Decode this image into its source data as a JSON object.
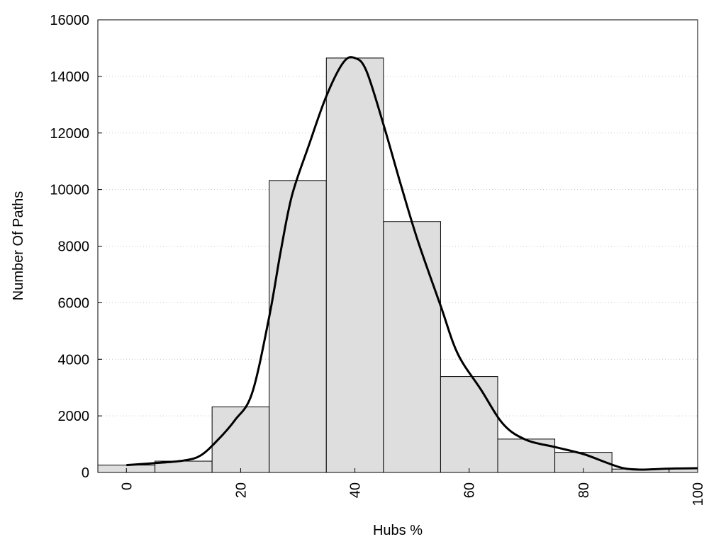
{
  "chart_data": {
    "type": "bar",
    "title": "",
    "xlabel": "Hubs %",
    "ylabel": "Number Of Paths",
    "xlim": [
      -5,
      100
    ],
    "ylim": [
      0,
      16000
    ],
    "xticks": [
      0,
      20,
      40,
      60,
      80,
      100
    ],
    "yticks": [
      0,
      2000,
      4000,
      6000,
      8000,
      10000,
      12000,
      14000,
      16000
    ],
    "grid": "horizontal dotted",
    "legend": "none",
    "bin_width": 10,
    "bins": [
      {
        "center": 0,
        "value": 260
      },
      {
        "center": 10,
        "value": 400
      },
      {
        "center": 20,
        "value": 2320
      },
      {
        "center": 30,
        "value": 10320
      },
      {
        "center": 40,
        "value": 14650
      },
      {
        "center": 50,
        "value": 8870
      },
      {
        "center": 60,
        "value": 3390
      },
      {
        "center": 70,
        "value": 1180
      },
      {
        "center": 80,
        "value": 710
      },
      {
        "center": 90,
        "value": 120
      },
      {
        "center": 100,
        "value": 130
      }
    ],
    "density_curve": {
      "x": [
        0,
        5,
        10,
        13,
        16,
        19,
        22,
        25,
        27,
        29,
        32,
        35,
        38,
        40,
        42,
        45,
        48,
        51,
        55,
        58,
        62,
        66,
        70,
        75,
        80,
        84,
        87,
        90,
        93,
        96,
        100
      ],
      "y": [
        260,
        330,
        420,
        600,
        1150,
        1850,
        2800,
        5500,
        7800,
        9800,
        11600,
        13300,
        14500,
        14650,
        14200,
        12300,
        10200,
        8200,
        5900,
        4200,
        2950,
        1700,
        1150,
        900,
        650,
        350,
        150,
        100,
        120,
        140,
        150
      ]
    },
    "colors": {
      "bar_fill": "#dedede",
      "bar_stroke": "#000000",
      "curve": "#000000",
      "grid": "#c8c8c8"
    }
  }
}
